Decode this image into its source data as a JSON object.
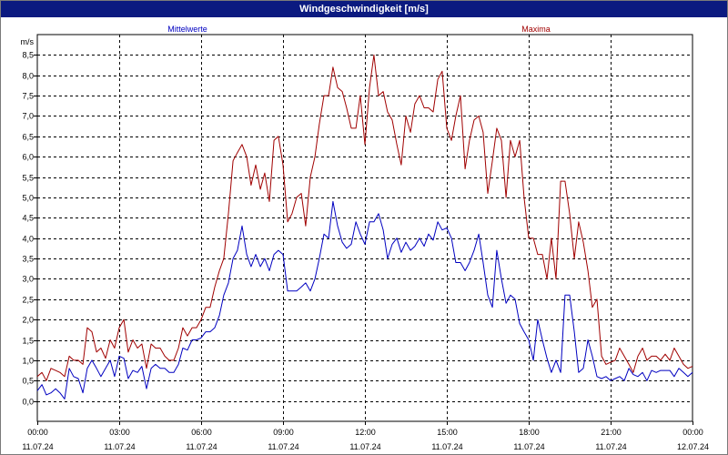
{
  "window": {
    "title": "Windgeschwindigkeit [m/s]"
  },
  "colors": {
    "title_bar_bg": "#0b1a80",
    "mean_series": "#0000c0",
    "max_series": "#a00000",
    "grid": "#000000"
  },
  "chart_data": {
    "type": "line",
    "title": "Windgeschwindigkeit [m/s]",
    "ylabel": "m/s",
    "xlabel": "",
    "ylim": [
      -0.5,
      9.0
    ],
    "xlim_hours": [
      0,
      24
    ],
    "grid": true,
    "y_ticks": [
      "0,0",
      "0,5",
      "1,0",
      "1,5",
      "2,0",
      "2,5",
      "3,0",
      "3,5",
      "4,0",
      "4,5",
      "5,0",
      "5,5",
      "6,0",
      "6,5",
      "7,0",
      "7,5",
      "8,0",
      "8,5"
    ],
    "x_ticks": [
      {
        "time": "00:00",
        "date": "11.07.24"
      },
      {
        "time": "03:00",
        "date": "11.07.24"
      },
      {
        "time": "06:00",
        "date": "11.07.24"
      },
      {
        "time": "09:00",
        "date": "11.07.24"
      },
      {
        "time": "12:00",
        "date": "11.07.24"
      },
      {
        "time": "15:00",
        "date": "11.07.24"
      },
      {
        "time": "18:00",
        "date": "11.07.24"
      },
      {
        "time": "21:00",
        "date": "11.07.24"
      },
      {
        "time": "00:00",
        "date": "12.07.24"
      }
    ],
    "series": [
      {
        "name": "Mittelwerte",
        "color": "#0000c0",
        "points": [
          [
            0.0,
            0.25
          ],
          [
            0.17,
            0.4
          ],
          [
            0.33,
            0.15
          ],
          [
            0.5,
            0.2
          ],
          [
            0.67,
            0.3
          ],
          [
            0.83,
            0.2
          ],
          [
            1.0,
            0.05
          ],
          [
            1.17,
            0.8
          ],
          [
            1.33,
            0.6
          ],
          [
            1.5,
            0.55
          ],
          [
            1.67,
            0.2
          ],
          [
            1.83,
            0.8
          ],
          [
            2.0,
            1.0
          ],
          [
            2.17,
            0.8
          ],
          [
            2.33,
            0.6
          ],
          [
            2.5,
            0.8
          ],
          [
            2.67,
            1.0
          ],
          [
            2.83,
            0.6
          ],
          [
            3.0,
            1.1
          ],
          [
            3.17,
            1.05
          ],
          [
            3.33,
            0.55
          ],
          [
            3.5,
            0.75
          ],
          [
            3.67,
            0.7
          ],
          [
            3.83,
            0.85
          ],
          [
            4.0,
            0.3
          ],
          [
            4.17,
            0.8
          ],
          [
            4.33,
            0.9
          ],
          [
            4.5,
            0.8
          ],
          [
            4.67,
            0.8
          ],
          [
            4.83,
            0.7
          ],
          [
            5.0,
            0.7
          ],
          [
            5.17,
            0.9
          ],
          [
            5.33,
            1.3
          ],
          [
            5.5,
            1.25
          ],
          [
            5.67,
            1.5
          ],
          [
            5.83,
            1.5
          ],
          [
            6.0,
            1.55
          ],
          [
            6.17,
            1.7
          ],
          [
            6.33,
            1.7
          ],
          [
            6.5,
            1.8
          ],
          [
            6.67,
            2.1
          ],
          [
            6.83,
            2.6
          ],
          [
            7.0,
            2.9
          ],
          [
            7.17,
            3.5
          ],
          [
            7.33,
            3.7
          ],
          [
            7.5,
            4.3
          ],
          [
            7.67,
            3.6
          ],
          [
            7.83,
            3.3
          ],
          [
            8.0,
            3.6
          ],
          [
            8.17,
            3.3
          ],
          [
            8.33,
            3.5
          ],
          [
            8.5,
            3.2
          ],
          [
            8.67,
            3.6
          ],
          [
            8.83,
            3.7
          ],
          [
            9.0,
            3.6
          ],
          [
            9.17,
            2.7
          ],
          [
            9.33,
            2.7
          ],
          [
            9.5,
            2.7
          ],
          [
            9.67,
            2.8
          ],
          [
            9.83,
            2.9
          ],
          [
            10.0,
            2.7
          ],
          [
            10.17,
            3.0
          ],
          [
            10.33,
            3.5
          ],
          [
            10.5,
            4.1
          ],
          [
            10.67,
            4.0
          ],
          [
            10.83,
            4.9
          ],
          [
            11.0,
            4.3
          ],
          [
            11.17,
            3.9
          ],
          [
            11.33,
            3.75
          ],
          [
            11.5,
            3.85
          ],
          [
            11.67,
            4.4
          ],
          [
            11.83,
            4.1
          ],
          [
            12.0,
            3.85
          ],
          [
            12.17,
            4.4
          ],
          [
            12.33,
            4.4
          ],
          [
            12.5,
            4.6
          ],
          [
            12.67,
            4.2
          ],
          [
            12.83,
            3.5
          ],
          [
            13.0,
            3.85
          ],
          [
            13.17,
            4.0
          ],
          [
            13.33,
            3.65
          ],
          [
            13.5,
            3.9
          ],
          [
            13.67,
            3.7
          ],
          [
            13.83,
            3.8
          ],
          [
            14.0,
            4.0
          ],
          [
            14.17,
            3.8
          ],
          [
            14.33,
            4.1
          ],
          [
            14.5,
            3.95
          ],
          [
            14.67,
            4.4
          ],
          [
            14.83,
            4.2
          ],
          [
            15.0,
            4.25
          ],
          [
            15.17,
            4.0
          ],
          [
            15.33,
            3.4
          ],
          [
            15.5,
            3.4
          ],
          [
            15.67,
            3.2
          ],
          [
            15.83,
            3.4
          ],
          [
            16.0,
            3.7
          ],
          [
            16.17,
            4.1
          ],
          [
            16.33,
            3.4
          ],
          [
            16.5,
            2.6
          ],
          [
            16.67,
            2.3
          ],
          [
            16.83,
            3.7
          ],
          [
            17.0,
            3.0
          ],
          [
            17.17,
            2.4
          ],
          [
            17.33,
            2.6
          ],
          [
            17.5,
            2.5
          ],
          [
            17.67,
            1.9
          ],
          [
            17.83,
            1.7
          ],
          [
            18.0,
            1.5
          ],
          [
            18.17,
            1.0
          ],
          [
            18.33,
            2.0
          ],
          [
            18.5,
            1.5
          ],
          [
            18.67,
            1.05
          ],
          [
            18.83,
            0.7
          ],
          [
            19.0,
            1.0
          ],
          [
            19.17,
            0.7
          ],
          [
            19.33,
            2.6
          ],
          [
            19.5,
            2.6
          ],
          [
            19.67,
            1.7
          ],
          [
            19.83,
            0.7
          ],
          [
            20.0,
            0.8
          ],
          [
            20.17,
            1.5
          ],
          [
            20.33,
            1.1
          ],
          [
            20.5,
            0.6
          ],
          [
            20.67,
            0.55
          ],
          [
            20.83,
            0.6
          ],
          [
            21.0,
            0.5
          ],
          [
            21.17,
            0.55
          ],
          [
            21.33,
            0.6
          ],
          [
            21.5,
            0.5
          ],
          [
            21.67,
            0.8
          ],
          [
            21.83,
            0.65
          ],
          [
            22.0,
            0.6
          ],
          [
            22.17,
            0.7
          ],
          [
            22.33,
            0.5
          ],
          [
            22.5,
            0.75
          ],
          [
            22.67,
            0.7
          ],
          [
            22.83,
            0.75
          ],
          [
            23.0,
            0.75
          ],
          [
            23.17,
            0.75
          ],
          [
            23.33,
            0.6
          ],
          [
            23.5,
            0.8
          ],
          [
            23.67,
            0.7
          ],
          [
            23.83,
            0.6
          ],
          [
            24.0,
            0.7
          ]
        ]
      },
      {
        "name": "Maxima",
        "color": "#a00000",
        "points": [
          [
            0.0,
            0.6
          ],
          [
            0.17,
            0.7
          ],
          [
            0.33,
            0.5
          ],
          [
            0.5,
            0.8
          ],
          [
            0.67,
            0.75
          ],
          [
            0.83,
            0.7
          ],
          [
            1.0,
            0.6
          ],
          [
            1.17,
            1.1
          ],
          [
            1.33,
            1.0
          ],
          [
            1.5,
            1.0
          ],
          [
            1.67,
            0.9
          ],
          [
            1.83,
            1.8
          ],
          [
            2.0,
            1.7
          ],
          [
            2.17,
            1.2
          ],
          [
            2.33,
            1.3
          ],
          [
            2.5,
            1.05
          ],
          [
            2.67,
            1.5
          ],
          [
            2.83,
            1.3
          ],
          [
            3.0,
            1.8
          ],
          [
            3.17,
            2.0
          ],
          [
            3.33,
            1.2
          ],
          [
            3.5,
            1.5
          ],
          [
            3.67,
            1.3
          ],
          [
            3.83,
            1.4
          ],
          [
            4.0,
            0.8
          ],
          [
            4.17,
            1.4
          ],
          [
            4.33,
            1.3
          ],
          [
            4.5,
            1.3
          ],
          [
            4.67,
            1.1
          ],
          [
            4.83,
            1.0
          ],
          [
            5.0,
            1.0
          ],
          [
            5.17,
            1.3
          ],
          [
            5.33,
            1.8
          ],
          [
            5.5,
            1.6
          ],
          [
            5.67,
            1.8
          ],
          [
            5.83,
            1.8
          ],
          [
            6.0,
            2.0
          ],
          [
            6.17,
            2.3
          ],
          [
            6.33,
            2.3
          ],
          [
            6.5,
            2.8
          ],
          [
            6.67,
            3.2
          ],
          [
            6.83,
            3.5
          ],
          [
            7.0,
            4.6
          ],
          [
            7.17,
            5.9
          ],
          [
            7.33,
            6.1
          ],
          [
            7.5,
            6.3
          ],
          [
            7.67,
            6.0
          ],
          [
            7.83,
            5.3
          ],
          [
            8.0,
            5.8
          ],
          [
            8.17,
            5.2
          ],
          [
            8.33,
            5.6
          ],
          [
            8.5,
            4.9
          ],
          [
            8.67,
            6.4
          ],
          [
            8.83,
            6.5
          ],
          [
            9.0,
            5.8
          ],
          [
            9.17,
            4.4
          ],
          [
            9.33,
            4.6
          ],
          [
            9.5,
            5.0
          ],
          [
            9.67,
            5.1
          ],
          [
            9.83,
            4.3
          ],
          [
            10.0,
            5.5
          ],
          [
            10.17,
            6.0
          ],
          [
            10.33,
            6.8
          ],
          [
            10.5,
            7.5
          ],
          [
            10.67,
            7.5
          ],
          [
            10.83,
            8.2
          ],
          [
            11.0,
            7.7
          ],
          [
            11.17,
            7.6
          ],
          [
            11.33,
            7.2
          ],
          [
            11.5,
            6.7
          ],
          [
            11.67,
            6.7
          ],
          [
            11.83,
            7.5
          ],
          [
            12.0,
            6.3
          ],
          [
            12.17,
            7.7
          ],
          [
            12.33,
            8.5
          ],
          [
            12.5,
            7.5
          ],
          [
            12.67,
            7.6
          ],
          [
            12.83,
            7.1
          ],
          [
            13.0,
            6.9
          ],
          [
            13.17,
            6.3
          ],
          [
            13.33,
            5.8
          ],
          [
            13.5,
            7.0
          ],
          [
            13.67,
            6.6
          ],
          [
            13.83,
            7.3
          ],
          [
            14.0,
            7.5
          ],
          [
            14.17,
            7.2
          ],
          [
            14.33,
            7.2
          ],
          [
            14.5,
            7.1
          ],
          [
            14.67,
            7.9
          ],
          [
            14.83,
            8.1
          ],
          [
            15.0,
            6.7
          ],
          [
            15.17,
            6.4
          ],
          [
            15.33,
            7.0
          ],
          [
            15.5,
            7.5
          ],
          [
            15.67,
            5.7
          ],
          [
            15.83,
            6.4
          ],
          [
            16.0,
            6.9
          ],
          [
            16.17,
            7.0
          ],
          [
            16.33,
            6.6
          ],
          [
            16.5,
            5.1
          ],
          [
            16.67,
            5.9
          ],
          [
            16.83,
            6.7
          ],
          [
            17.0,
            6.4
          ],
          [
            17.17,
            5.0
          ],
          [
            17.33,
            6.4
          ],
          [
            17.5,
            6.0
          ],
          [
            17.67,
            6.4
          ],
          [
            17.83,
            5.0
          ],
          [
            18.0,
            4.0
          ],
          [
            18.17,
            4.0
          ],
          [
            18.33,
            3.6
          ],
          [
            18.5,
            3.6
          ],
          [
            18.67,
            3.0
          ],
          [
            18.83,
            4.0
          ],
          [
            19.0,
            3.0
          ],
          [
            19.17,
            5.4
          ],
          [
            19.33,
            5.4
          ],
          [
            19.5,
            4.6
          ],
          [
            19.67,
            3.5
          ],
          [
            19.83,
            4.4
          ],
          [
            20.0,
            3.9
          ],
          [
            20.17,
            3.2
          ],
          [
            20.33,
            2.3
          ],
          [
            20.5,
            2.5
          ],
          [
            20.67,
            1.1
          ],
          [
            20.83,
            0.9
          ],
          [
            21.0,
            0.95
          ],
          [
            21.17,
            1.0
          ],
          [
            21.33,
            1.3
          ],
          [
            21.5,
            1.1
          ],
          [
            21.67,
            0.9
          ],
          [
            21.83,
            0.7
          ],
          [
            22.0,
            1.1
          ],
          [
            22.17,
            1.3
          ],
          [
            22.33,
            1.0
          ],
          [
            22.5,
            1.1
          ],
          [
            22.67,
            1.1
          ],
          [
            22.83,
            1.0
          ],
          [
            23.0,
            1.15
          ],
          [
            23.17,
            1.0
          ],
          [
            23.33,
            1.3
          ],
          [
            23.5,
            1.1
          ],
          [
            23.67,
            0.9
          ],
          [
            23.83,
            0.8
          ],
          [
            24.0,
            0.85
          ]
        ]
      }
    ]
  }
}
